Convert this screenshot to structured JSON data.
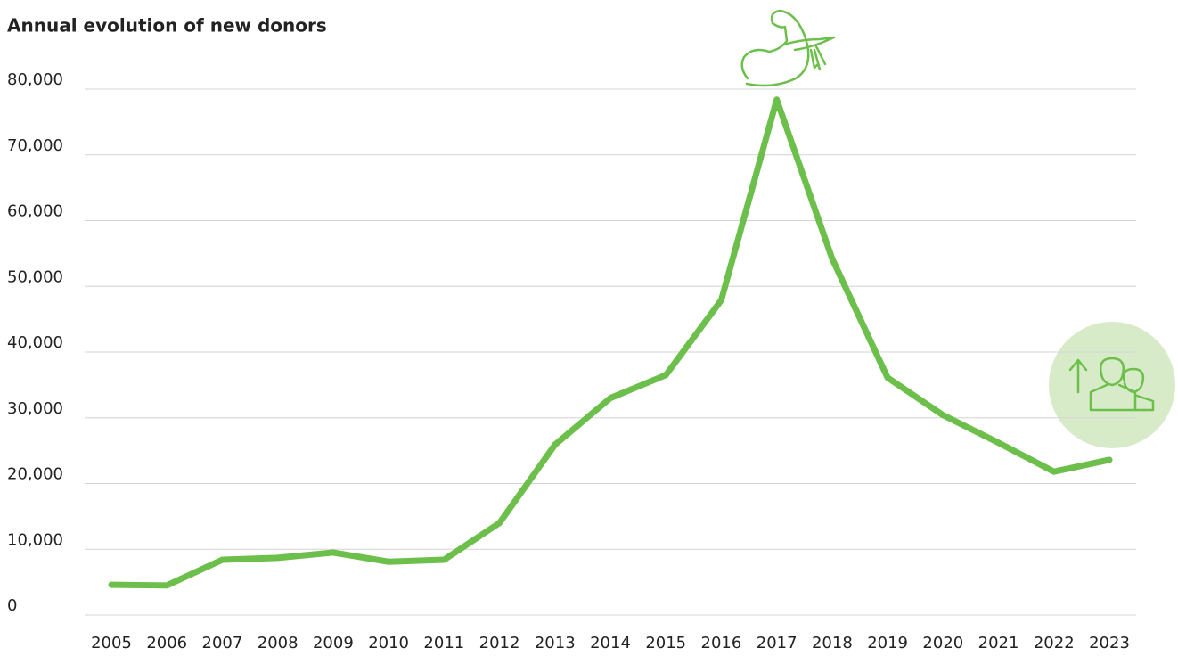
{
  "chart_data": {
    "type": "line",
    "title": "Annual evolution of new donors",
    "categories": [
      "2005",
      "2006",
      "2007",
      "2008",
      "2009",
      "2010",
      "2011",
      "2012",
      "2013",
      "2014",
      "2015",
      "2016",
      "2017",
      "2018",
      "2019",
      "2020",
      "2021",
      "2022",
      "2023"
    ],
    "values": [
      4600,
      4500,
      8400,
      8700,
      9500,
      8100,
      8400,
      14000,
      25900,
      33000,
      36500,
      47900,
      78400,
      54200,
      36100,
      30400,
      26200,
      21800,
      23600
    ],
    "color": "#6cbf4a",
    "ylim": [
      0,
      80000
    ],
    "yticks": [
      0,
      {
        "value": 10000,
        "label": "10,000"
      },
      {
        "value": 20000,
        "label": "20,000"
      },
      {
        "value": 30000,
        "label": "30,000"
      },
      {
        "value": 40000,
        "label": "40,000"
      },
      {
        "value": 50000,
        "label": "50,000"
      },
      {
        "value": 60000,
        "label": "60,000"
      },
      {
        "value": 70000,
        "label": "70,000"
      },
      {
        "value": 80000,
        "label": "80,000"
      }
    ],
    "grid": true
  }
}
